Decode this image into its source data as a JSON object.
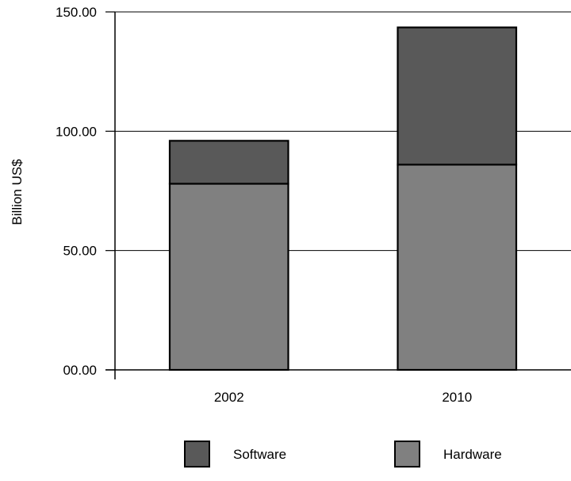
{
  "chart_data": {
    "type": "bar",
    "stacked": true,
    "categories": [
      "2002",
      "2010"
    ],
    "series": [
      {
        "name": "Hardware",
        "values": [
          78,
          86
        ],
        "color": "#808080"
      },
      {
        "name": "Software",
        "values": [
          18,
          57.5
        ],
        "color": "#595959"
      }
    ],
    "ylabel": "Billion US$",
    "xlabel": "",
    "ylim": [
      0,
      150
    ],
    "yticks": [
      "00.00",
      "50.00",
      "100.00",
      "150.00"
    ],
    "ytick_values": [
      0,
      50,
      100,
      150
    ],
    "grid": true,
    "legend_position": "bottom",
    "legend_order": [
      "Software",
      "Hardware"
    ]
  }
}
